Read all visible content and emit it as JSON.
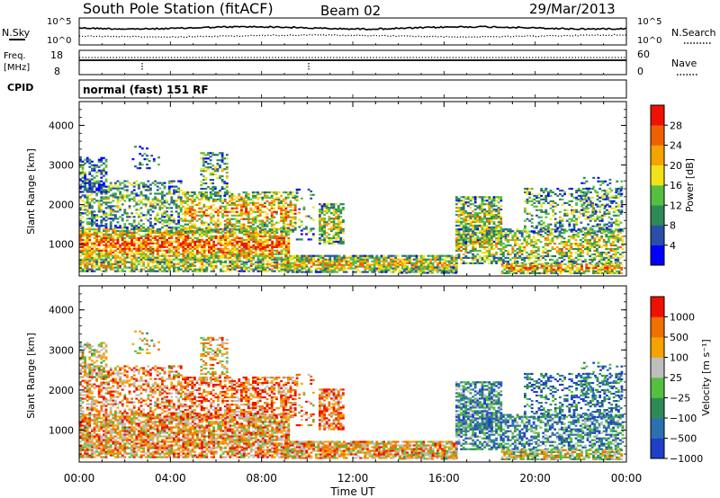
{
  "header": {
    "title": "South Pole Station (fitACF)",
    "beam": "Beam 02",
    "date": "29/Mar/2013"
  },
  "top_panels": {
    "nsky_label": "N.Sky",
    "nsearch_label": "N.Search",
    "noise_ticks": [
      "10^5",
      "10^0"
    ],
    "freq_label_line1": "Freq.",
    "freq_label_line2": "[MHz]",
    "freq_ticks": [
      "18",
      "8"
    ],
    "nave_label": "Nave",
    "nave_ticks": [
      "60",
      "0"
    ],
    "cpid_label": "CPID",
    "cpid_text": "normal (fast) 151 RF"
  },
  "chart_data": [
    {
      "type": "heatmap",
      "name": "power-panel",
      "ylabel": "Slant Range [km]",
      "xlabel": "",
      "ylim": [
        200,
        4600
      ],
      "yticks": [
        "4000",
        "3000",
        "2000",
        "1000"
      ],
      "colorbar_label": "Power [dB]",
      "colorbar_ticks": [
        "28",
        "24",
        "20",
        "16",
        "12",
        "8",
        "4"
      ],
      "colors": [
        "#0000ff",
        "#2a4fa8",
        "#2e8a57",
        "#55c040",
        "#f2e218",
        "#f5a300",
        "#f06000",
        "#f01000"
      ]
    },
    {
      "type": "heatmap",
      "name": "velocity-panel",
      "ylabel": "Slant Range [km]",
      "xlabel": "Time UT",
      "ylim": [
        200,
        4600
      ],
      "yticks": [
        "4000",
        "3000",
        "2000",
        "1000"
      ],
      "xticks": [
        "00:00",
        "04:00",
        "08:00",
        "12:00",
        "16:00",
        "20:00",
        "00:00"
      ],
      "colorbar_label": "Velocity [m s⁻¹]",
      "colorbar_ticks": [
        "1000",
        "500",
        "100",
        "25",
        "−25",
        "−100",
        "−500",
        "−1000"
      ],
      "colors": [
        "#1f3fc8",
        "#2e6fb0",
        "#2e8a57",
        "#55c040",
        "#bebebe",
        "#f5a300",
        "#f07000",
        "#f01000"
      ]
    }
  ]
}
